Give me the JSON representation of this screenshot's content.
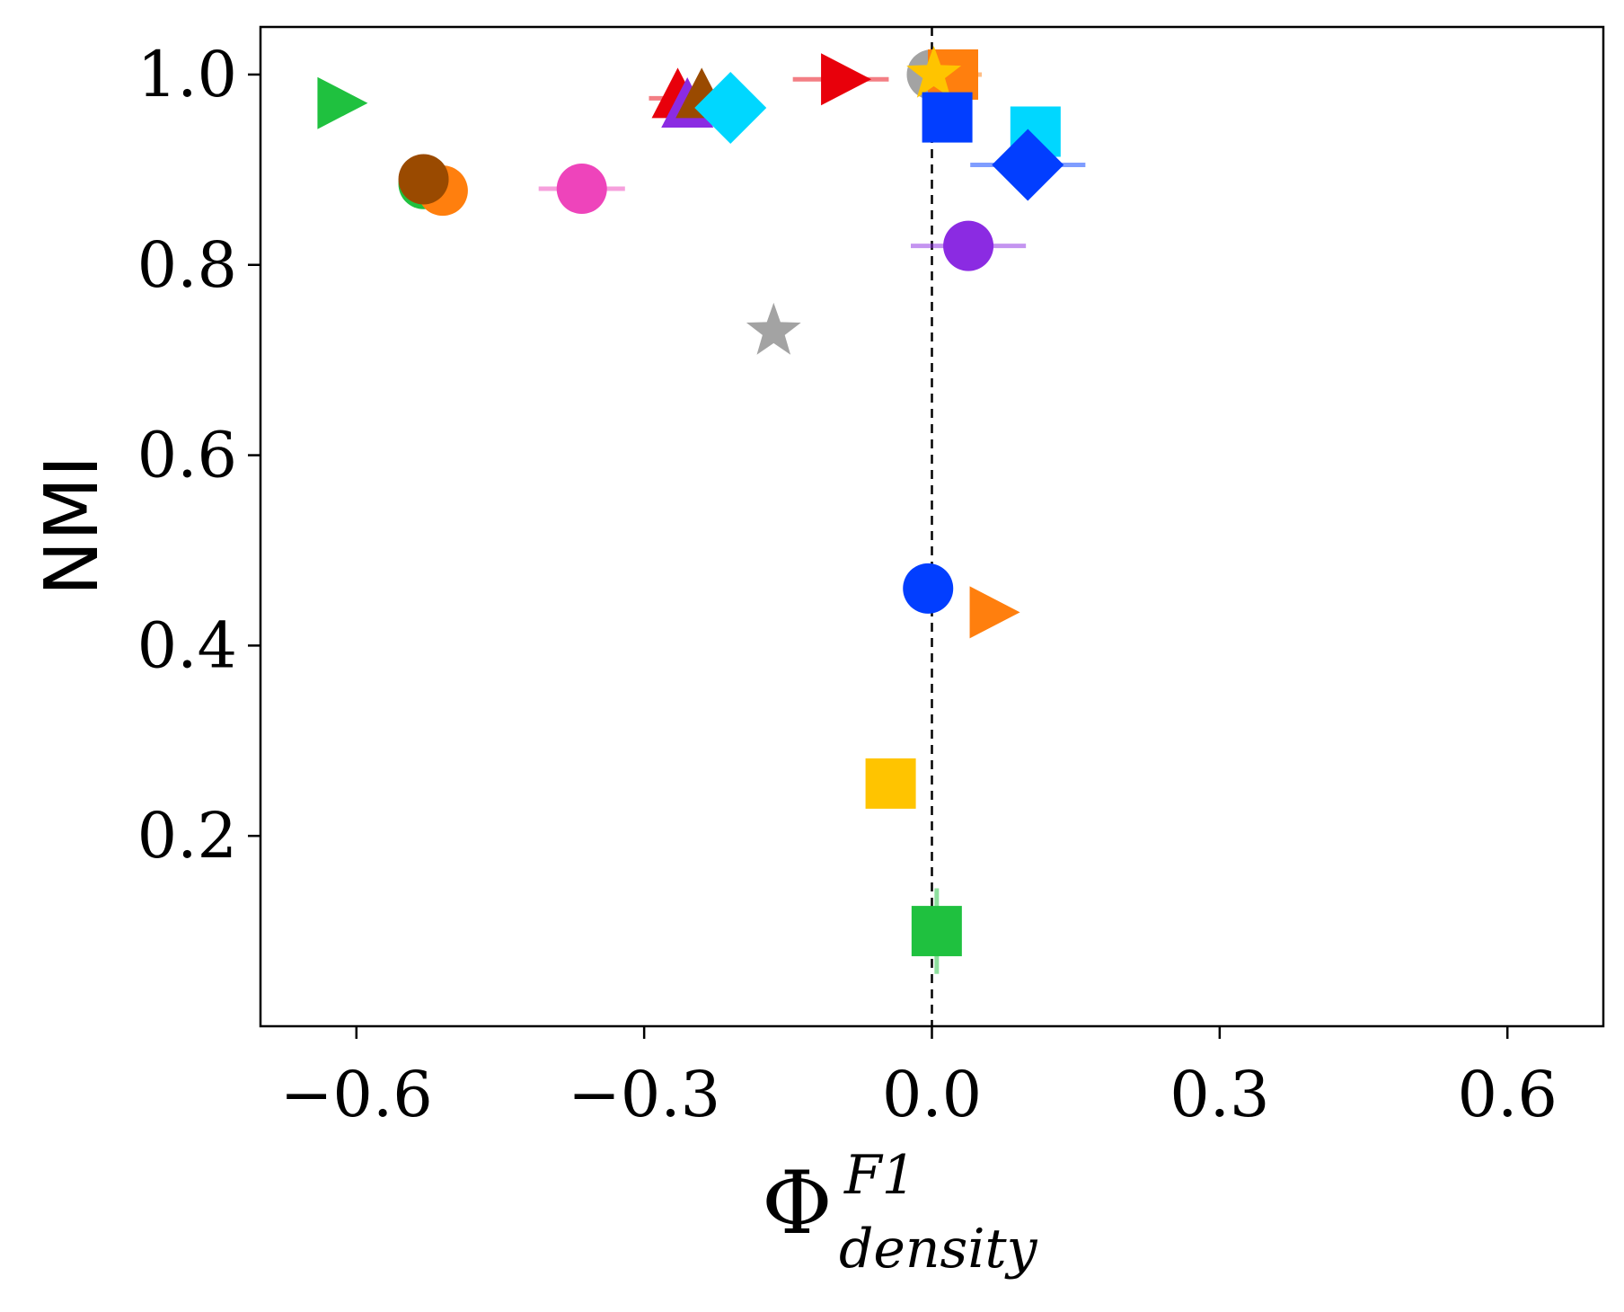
{
  "chart_data": {
    "type": "scatter",
    "xlabel": "Φ",
    "xlabel_sup": "F1",
    "xlabel_sub": "density",
    "ylabel": "NMI",
    "xlim": [
      -0.7,
      0.7
    ],
    "ylim": [
      0.0,
      1.05
    ],
    "xticks": [
      -0.6,
      -0.3,
      0.0,
      0.3,
      0.6
    ],
    "xtick_labels": [
      "−0.6",
      "−0.3",
      "0.0",
      "0.3",
      "0.6"
    ],
    "yticks": [
      0.2,
      0.4,
      0.6,
      0.8,
      1.0
    ],
    "ytick_labels": [
      "0.2",
      "0.4",
      "0.6",
      "0.8",
      "1.0"
    ],
    "reference_line": {
      "x": 0.0,
      "style": "dashed",
      "color": "#000000"
    },
    "points": [
      {
        "x": -0.62,
        "y": 0.97,
        "marker": "triangle-right",
        "color": "#1fc13f",
        "xerr": 0
      },
      {
        "x": -0.53,
        "y": 0.885,
        "marker": "circle",
        "color": "#1fc13f",
        "xerr": 0
      },
      {
        "x": -0.51,
        "y": 0.878,
        "marker": "circle",
        "color": "#ff7f0e",
        "xerr": 0
      },
      {
        "x": -0.53,
        "y": 0.89,
        "marker": "circle",
        "color": "#9a4a00",
        "xerr": 0
      },
      {
        "x": -0.365,
        "y": 0.88,
        "marker": "circle",
        "color": "#ee44bb",
        "xerr": 0.045
      },
      {
        "x": -0.265,
        "y": 0.975,
        "marker": "triangle-up",
        "color": "#e8000b",
        "xerr": 0.03
      },
      {
        "x": -0.255,
        "y": 0.965,
        "marker": "triangle-up",
        "color": "#8b2be2",
        "xerr": 0
      },
      {
        "x": -0.24,
        "y": 0.975,
        "marker": "triangle-up",
        "color": "#9a4a00",
        "xerr": 0
      },
      {
        "x": -0.21,
        "y": 0.965,
        "marker": "diamond",
        "color": "#00d7ff",
        "xerr": 0
      },
      {
        "x": -0.165,
        "y": 0.73,
        "marker": "star",
        "color": "#a3a3a3",
        "xerr": 0
      },
      {
        "x": -0.095,
        "y": 0.995,
        "marker": "triangle-right",
        "color": "#e8000b",
        "xerr": 0.05
      },
      {
        "x": 0.0,
        "y": 1.0,
        "marker": "circle",
        "color": "#a3a3a3",
        "xerr": 0
      },
      {
        "x": 0.022,
        "y": 1.0,
        "marker": "square",
        "color": "#ff7f0e",
        "xerr": 0.03
      },
      {
        "x": 0.002,
        "y": 1.0,
        "marker": "star",
        "color": "#ffc400",
        "xerr": 0
      },
      {
        "x": 0.016,
        "y": 0.955,
        "marker": "square",
        "color": "#023eff",
        "xerr": 0
      },
      {
        "x": 0.108,
        "y": 0.94,
        "marker": "square",
        "color": "#00d7ff",
        "xerr": 0
      },
      {
        "x": 0.1,
        "y": 0.905,
        "marker": "diamond",
        "color": "#023eff",
        "xerr": 0.06
      },
      {
        "x": 0.038,
        "y": 0.82,
        "marker": "circle",
        "color": "#8b2be2",
        "xerr": 0.06
      },
      {
        "x": -0.004,
        "y": 0.46,
        "marker": "circle",
        "color": "#023eff",
        "xerr": 0
      },
      {
        "x": 0.06,
        "y": 0.435,
        "marker": "triangle-right",
        "color": "#ff7f0e",
        "xerr": 0
      },
      {
        "x": -0.043,
        "y": 0.255,
        "marker": "square",
        "color": "#ffc400",
        "xerr": 0
      },
      {
        "x": 0.005,
        "y": 0.1,
        "marker": "square",
        "color": "#1fc13f",
        "xerr": 0,
        "yerr": 0.045
      }
    ]
  }
}
